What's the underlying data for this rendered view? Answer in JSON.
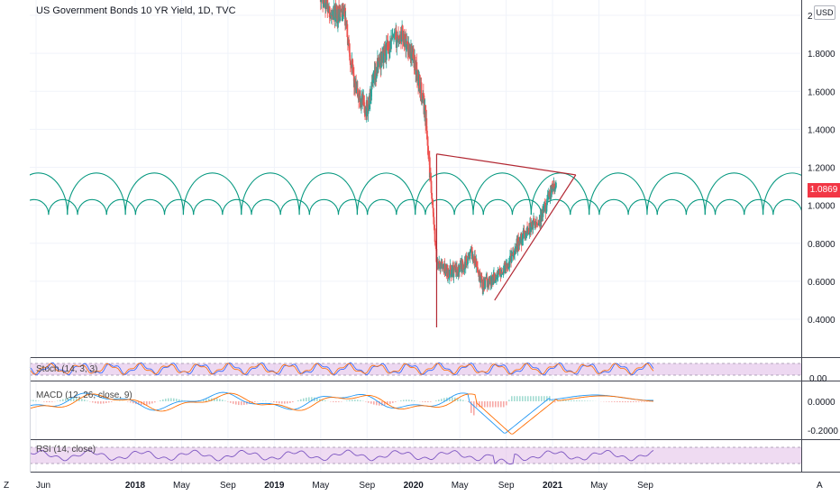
{
  "header": {
    "title": "US Government Bonds 10 YR Yield, 1D, TVC",
    "currency": "USD",
    "last_price": "1.0869"
  },
  "indicators": {
    "stoch_label": "Stoch (14, 3, 3)",
    "macd_label": "MACD (12, 26, close, 9)",
    "rsi_label": "RSI (14, close)"
  },
  "corners": {
    "left": "Z",
    "right": "A"
  },
  "colors": {
    "up": "#26a69a",
    "down": "#ef5350",
    "cycle_arcs": "#089981",
    "trendline": "#b22833",
    "price_tag": "#f23645",
    "stoch_k": "#2962ff",
    "stoch_d": "#ff6d00",
    "macd_line": "#2196f3",
    "signal_line": "#ff6d00",
    "rsi_line": "#7e57c2",
    "band_fill": "#e1bee7"
  },
  "chart_data": {
    "type": "line",
    "title": "US Government Bonds 10 YR Yield, 1D, TVC",
    "x_tick_labels": [
      "Jun",
      "2018",
      "May",
      "Sep",
      "2019",
      "May",
      "Sep",
      "2020",
      "May",
      "Sep",
      "2021",
      "May",
      "Sep"
    ],
    "y_tick_labels": [
      "2",
      "1.8000",
      "1.6000",
      "1.4000",
      "1.2000",
      "1.0000",
      "0.8000",
      "0.6000",
      "0.4000"
    ],
    "ylim": [
      0.28,
      2.05
    ],
    "series": [
      {
        "name": "",
        "x": [
          "2019-05",
          "2019-06",
          "2019-07",
          "2019-08",
          "2019-09",
          "2019-10",
          "2019-11",
          "2019-12",
          "2020-01",
          "2020-02",
          "2020-03",
          "2020-04",
          "2020-05",
          "2020-06",
          "2020-07",
          "2020-08",
          "2020-09",
          "2020-10",
          "2020-11",
          "2020-12",
          "2021-01"
        ],
        "values": [
          2.12,
          2.0,
          2.02,
          1.6,
          1.5,
          1.75,
          1.85,
          1.9,
          1.78,
          1.5,
          0.7,
          0.65,
          0.66,
          0.75,
          0.58,
          0.62,
          0.68,
          0.8,
          0.88,
          0.93,
          1.09
        ]
      }
    ],
    "cycle_arcs": {
      "large_period_months": 5,
      "small_period_months": 2.5,
      "large_peak": 1.17,
      "small_peak": 1.03,
      "base": 0.95
    },
    "triangle": {
      "points": [
        [
          "2020-03",
          1.27
        ],
        [
          "2021-03",
          1.16
        ],
        [
          "2020-08",
          0.5
        ]
      ]
    },
    "stoch": {
      "y_tick_labels": [
        "0.00"
      ],
      "bands": [
        20,
        80
      ]
    },
    "macd": {
      "y_tick_labels": [
        "0.0000",
        "-0.2000"
      ]
    },
    "rsi": {
      "bands": [
        30,
        70
      ]
    }
  }
}
